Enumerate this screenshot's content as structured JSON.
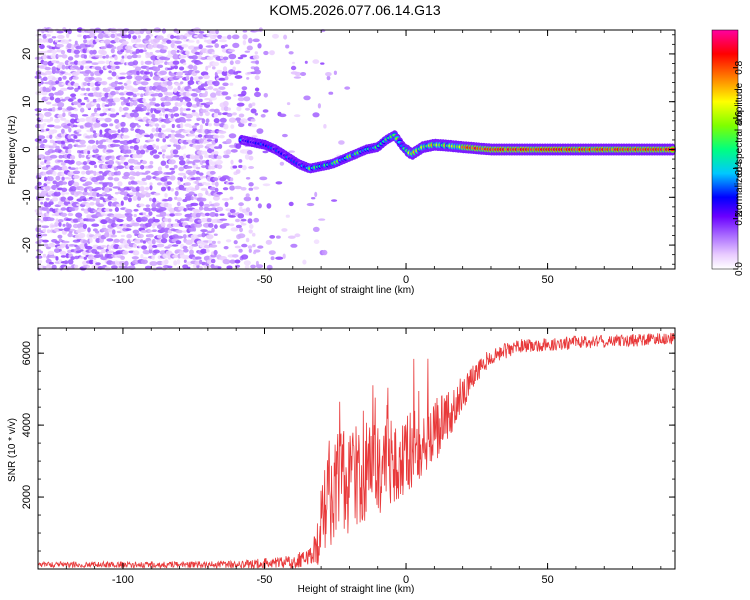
{
  "title": "KOM5.2026.077.06.14.G13",
  "colors": {
    "snr_line": "#e8393a",
    "spectrogram_ramp": [
      "#ffffff",
      "#e9ccff",
      "#a96bff",
      "#6a00ff",
      "#0000ff",
      "#00c8ff",
      "#00ff80",
      "#7fff00",
      "#ffff00",
      "#ff8000",
      "#ff0000",
      "#ff00a0"
    ]
  },
  "chart_data": [
    {
      "type": "heatmap",
      "name": "spectrogram",
      "xlabel": "Height of straight line (km)",
      "ylabel": "Frequency (Hz)",
      "xlim": [
        -130,
        95
      ],
      "ylim": [
        -25,
        25
      ],
      "xticks": [
        -100,
        -50,
        0,
        50
      ],
      "xtick_labels": [
        "-100",
        "-50",
        "0",
        "50"
      ],
      "yticks": [
        -20,
        -10,
        0,
        10,
        20
      ],
      "ytick_labels": [
        "-20",
        "-10",
        "0",
        "10",
        "20"
      ],
      "ridge": {
        "x": [
          -58,
          -54,
          -50,
          -46,
          -42,
          -38,
          -34,
          -30,
          -26,
          -22,
          -18,
          -14,
          -10,
          -7,
          -4,
          -1,
          2,
          6,
          10,
          15,
          20,
          30,
          40,
          50,
          60,
          70,
          80,
          90,
          95
        ],
        "freq": [
          2,
          1.5,
          1,
          0,
          -1.5,
          -3,
          -4,
          -3.5,
          -3,
          -2,
          -1,
          0,
          0.5,
          2,
          3,
          0.5,
          -1,
          0.5,
          1,
          0.8,
          0.5,
          0,
          0,
          0,
          0,
          0,
          0,
          0,
          0
        ]
      }
    },
    {
      "type": "colorbar",
      "label": "Normalized spectral amplitude",
      "range": [
        0,
        0.95
      ],
      "ticks": [
        0.0,
        0.2,
        0.4,
        0.6,
        0.8
      ],
      "tick_labels": [
        "0.0",
        "0.2",
        "0.4",
        "0.6",
        "0.8"
      ]
    },
    {
      "type": "line",
      "name": "snr",
      "xlabel": "Height of straight line (km)",
      "ylabel": "SNR (10 * v/v)",
      "xlim": [
        -130,
        95
      ],
      "ylim": [
        0,
        6700
      ],
      "xticks": [
        -100,
        -50,
        0,
        50
      ],
      "xtick_labels": [
        "-100",
        "-50",
        "0",
        "50"
      ],
      "yticks": [
        2000,
        4000,
        6000
      ],
      "ytick_labels": [
        "2000",
        "4000",
        "6000"
      ],
      "envelope": {
        "x": [
          -130,
          -60,
          -40,
          -33,
          -31,
          -28,
          -24,
          -20,
          -15,
          -10,
          -5,
          0,
          5,
          10,
          15,
          20,
          25,
          30,
          40,
          60,
          95
        ],
        "baseline": [
          120,
          120,
          200,
          400,
          900,
          1800,
          2300,
          2500,
          2700,
          2800,
          3000,
          3200,
          3500,
          3800,
          4300,
          4900,
          5500,
          5900,
          6200,
          6300,
          6400
        ],
        "spread": [
          80,
          100,
          180,
          300,
          900,
          1300,
          1500,
          1500,
          1400,
          1300,
          1200,
          1100,
          1000,
          900,
          700,
          500,
          300,
          250,
          200,
          180,
          170
        ]
      }
    }
  ]
}
